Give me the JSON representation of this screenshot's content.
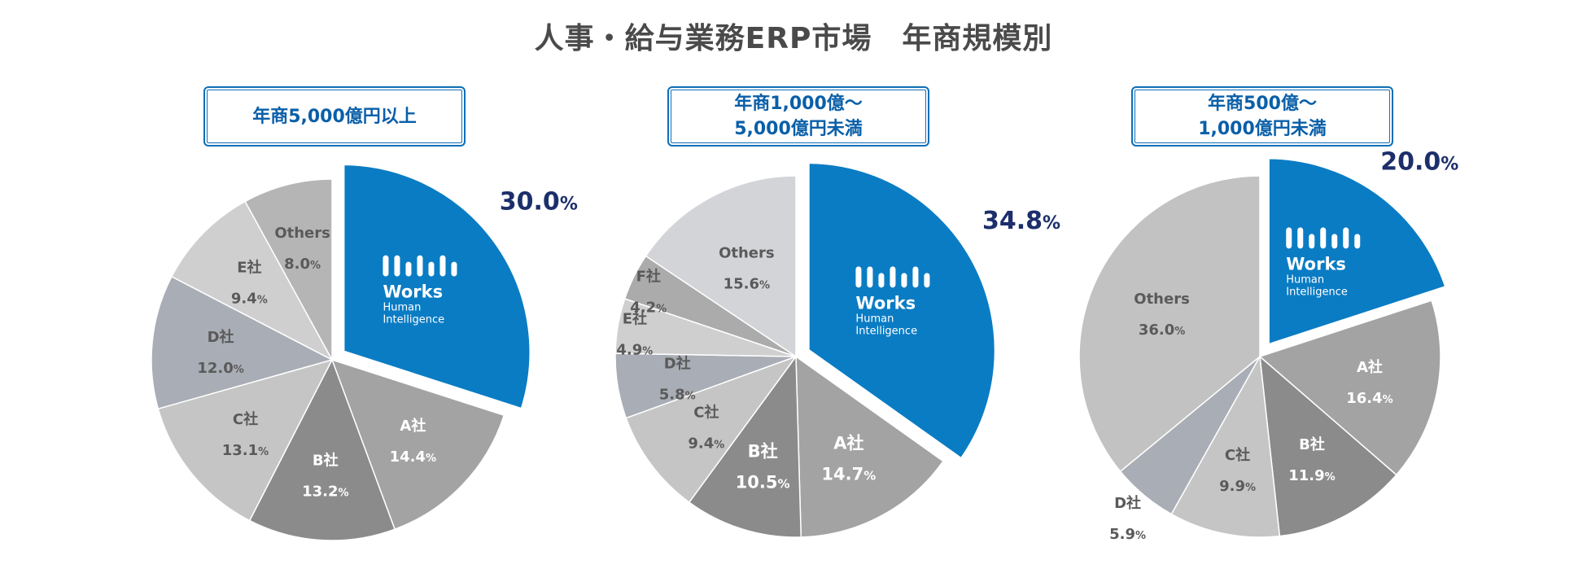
{
  "title": "人事・給与業務ERP市場　年商規模別",
  "brand": {
    "name_line1": "Works",
    "name_line2": "Human",
    "name_line3": "Intelligence",
    "color": "#0a7cc4"
  },
  "chart_data": [
    {
      "type": "pie",
      "title_lines": [
        "年商5,000億円以上"
      ],
      "slices": [
        {
          "name": "Works Human Intelligence",
          "value": 30.0,
          "label": "",
          "pct_num": "30.0",
          "pct_unit": "%",
          "color": "#0a7cc4",
          "highlight": true
        },
        {
          "name": "A社",
          "value": 14.4,
          "label": "A社",
          "pct_num": "14.4",
          "pct_unit": "%",
          "color": "#a3a3a3"
        },
        {
          "name": "B社",
          "value": 13.2,
          "label": "B社",
          "pct_num": "13.2",
          "pct_unit": "%",
          "color": "#8b8b8b"
        },
        {
          "name": "C社",
          "value": 13.1,
          "label": "C社",
          "pct_num": "13.1",
          "pct_unit": "%",
          "color": "#c5c5c5"
        },
        {
          "name": "D社",
          "value": 12.0,
          "label": "D社",
          "pct_num": "12.0",
          "pct_unit": "%",
          "color": "#a9adb5"
        },
        {
          "name": "E社",
          "value": 9.4,
          "label": "E社",
          "pct_num": "9.4",
          "pct_unit": "%",
          "color": "#cfcfcf"
        },
        {
          "name": "Others",
          "value": 8.0,
          "label": "Others",
          "pct_num": "8.0",
          "pct_unit": "%",
          "color": "#b5b5b5"
        }
      ]
    },
    {
      "type": "pie",
      "title_lines": [
        "年商1,000億～",
        "5,000億円未満"
      ],
      "slices": [
        {
          "name": "Works Human Intelligence",
          "value": 34.8,
          "label": "",
          "pct_num": "34.8",
          "pct_unit": "%",
          "color": "#0a7cc4",
          "highlight": true
        },
        {
          "name": "A社",
          "value": 14.7,
          "label": "A社",
          "pct_num": "14.7",
          "pct_unit": "%",
          "color": "#a3a3a3"
        },
        {
          "name": "B社",
          "value": 10.5,
          "label": "B社",
          "pct_num": "10.5",
          "pct_unit": "%",
          "color": "#8b8b8b"
        },
        {
          "name": "C社",
          "value": 9.4,
          "label": "C社",
          "pct_num": "9.4",
          "pct_unit": "%",
          "color": "#c5c5c5"
        },
        {
          "name": "D社",
          "value": 5.8,
          "label": "D社",
          "pct_num": "5.8",
          "pct_unit": "%",
          "color": "#a9adb5"
        },
        {
          "name": "E社",
          "value": 4.9,
          "label": "E社",
          "pct_num": "4.9",
          "pct_unit": "%",
          "color": "#cfcfcf"
        },
        {
          "name": "F社",
          "value": 4.2,
          "label": "F社",
          "pct_num": "4.2",
          "pct_unit": "%",
          "color": "#ababab"
        },
        {
          "name": "Others",
          "value": 15.6,
          "label": "Others",
          "pct_num": "15.6",
          "pct_unit": "%",
          "color": "#d2d4d8"
        }
      ]
    },
    {
      "type": "pie",
      "title_lines": [
        "年商500億～",
        "1,000億円未満"
      ],
      "slices": [
        {
          "name": "Works Human Intelligence",
          "value": 20.0,
          "label": "",
          "pct_num": "20.0",
          "pct_unit": "%",
          "color": "#0a7cc4",
          "highlight": true
        },
        {
          "name": "A社",
          "value": 16.4,
          "label": "A社",
          "pct_num": "16.4",
          "pct_unit": "%",
          "color": "#a3a3a3"
        },
        {
          "name": "B社",
          "value": 11.9,
          "label": "B社",
          "pct_num": "11.9",
          "pct_unit": "%",
          "color": "#8b8b8b"
        },
        {
          "name": "C社",
          "value": 9.9,
          "label": "C社",
          "pct_num": "9.9",
          "pct_unit": "%",
          "color": "#c5c5c5"
        },
        {
          "name": "D社",
          "value": 5.9,
          "label": "D社",
          "pct_num": "5.9",
          "pct_unit": "%",
          "color": "#a9adb5"
        },
        {
          "name": "Others",
          "value": 36.0,
          "label": "Others",
          "pct_num": "36.0",
          "pct_unit": "%",
          "color": "#c2c2c2"
        }
      ]
    }
  ]
}
